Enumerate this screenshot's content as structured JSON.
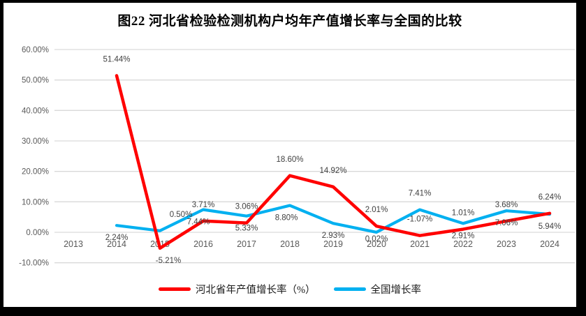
{
  "chart_data": {
    "type": "line",
    "title": "图22 河北省检验检测机构户均年产值增长率与全国的比较",
    "categories": [
      "2013",
      "2014",
      "2015",
      "2016",
      "2017",
      "2018",
      "2019",
      "2020",
      "2021",
      "2022",
      "2023",
      "2024"
    ],
    "series": [
      {
        "name": "河北省年产值增长率（%）",
        "color": "#FF0000",
        "values": [
          null,
          51.44,
          -5.21,
          3.71,
          3.06,
          18.6,
          14.92,
          2.01,
          -1.07,
          1.01,
          3.68,
          6.24
        ],
        "labels": [
          null,
          "51.44%",
          "-5.21%",
          "3.71%",
          "3.06%",
          "18.60%",
          "14.92%",
          "2.01%",
          "-1.07%",
          "1.01%",
          "3.68%",
          "6.24%"
        ],
        "label_sides": [
          null,
          "above",
          "below",
          "above",
          "above",
          "above",
          "above",
          "above",
          "above",
          "above",
          "above",
          "above"
        ],
        "label_dx": [
          0,
          0,
          12,
          0,
          0,
          0,
          0,
          0,
          0,
          0,
          0,
          0
        ],
        "label_dy": [
          0,
          0,
          0,
          0,
          0,
          0,
          0,
          0,
          0,
          0,
          0,
          0
        ]
      },
      {
        "name": "全国增长率",
        "color": "#00B0F0",
        "values": [
          null,
          2.24,
          0.5,
          7.44,
          5.33,
          8.8,
          2.93,
          0.02,
          7.41,
          2.91,
          7.06,
          5.94
        ],
        "labels": [
          null,
          "2.24%",
          "0.50%",
          "7.44%",
          "5.33%",
          "8.80%",
          "2.93%",
          "0.02%",
          "7.41%",
          "2.91%",
          "7.06%",
          "5.94%"
        ],
        "label_sides": [
          null,
          "below",
          "above",
          "below",
          "below",
          "below",
          "below",
          "below",
          "above",
          "below",
          "below",
          "below"
        ],
        "label_dx": [
          0,
          0,
          30,
          -7,
          0,
          -5,
          0,
          0,
          0,
          0,
          0,
          0
        ],
        "label_dy": [
          0,
          0,
          0,
          0,
          0,
          0,
          0,
          -8,
          0,
          0,
          0,
          0
        ]
      }
    ],
    "ylim": [
      -10,
      60
    ],
    "ytick_step": 10,
    "yticks": [
      60,
      50,
      40,
      30,
      20,
      10,
      0,
      -10
    ],
    "ytick_labels": [
      "60.00%",
      "50.00%",
      "40.00%",
      "30.00%",
      "20.00%",
      "10.00%",
      "0.00%",
      "-10.00%"
    ],
    "grid": true,
    "gridline_color": "#D9D9D9",
    "axis_text_color": "#595959",
    "data_label_color": "#404040",
    "legend_position": "bottom"
  }
}
